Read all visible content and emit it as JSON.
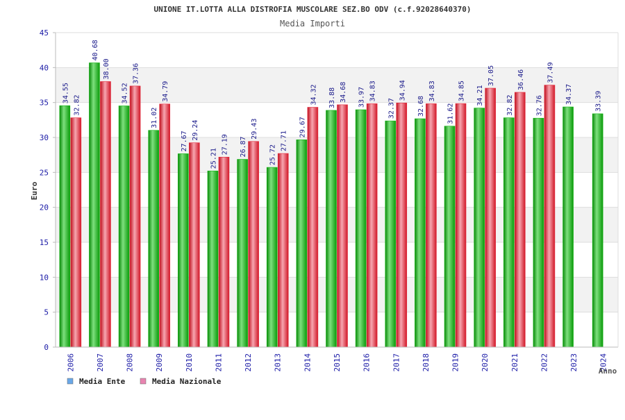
{
  "chart_data": {
    "type": "bar",
    "title": "UNIONE IT.LOTTA ALLA DISTROFIA MUSCOLARE SEZ.BO ODV (c.f.92028640370)",
    "subtitle": "Media Importi",
    "ylabel": "Euro",
    "xlabel": "Anno",
    "ylim": [
      0,
      45
    ],
    "yticks": [
      0,
      5,
      10,
      15,
      20,
      25,
      30,
      35,
      40,
      45
    ],
    "categories": [
      "2006",
      "2007",
      "2008",
      "2009",
      "2010",
      "2011",
      "2012",
      "2013",
      "2014",
      "2015",
      "2016",
      "2017",
      "2018",
      "2019",
      "2020",
      "2021",
      "2022",
      "2023",
      "2024"
    ],
    "series": [
      {
        "name": "Media Ente",
        "color": "#11b511",
        "legend_color": "#6aa8e8",
        "values": [
          34.55,
          40.68,
          34.52,
          31.02,
          27.67,
          25.21,
          26.87,
          25.72,
          29.67,
          33.88,
          33.97,
          32.37,
          32.68,
          31.62,
          34.21,
          32.82,
          32.76,
          34.37,
          33.39
        ],
        "labels": [
          "34.55",
          "40.68",
          "34.52",
          "31.02",
          "27.67",
          "25.21",
          "26.87",
          "25.72",
          "29.67",
          "33.88",
          "33.97",
          "32.37",
          "32.68",
          "31.62",
          "34.21",
          "32.82",
          "32.76",
          "34.37",
          "33.39"
        ]
      },
      {
        "name": "Media Nazionale",
        "color": "#e6283c",
        "legend_color": "#e884b0",
        "values": [
          32.82,
          38.0,
          37.36,
          34.79,
          29.24,
          27.19,
          29.43,
          27.71,
          34.32,
          34.68,
          34.83,
          34.94,
          34.83,
          34.85,
          37.05,
          36.46,
          37.49,
          null,
          null
        ],
        "labels": [
          "32.82",
          "38.00",
          "37.36",
          "34.79",
          "29.24",
          "27.19",
          "29.43",
          "27.71",
          "34.32",
          "34.68",
          "34.83",
          "34.94",
          "34.83",
          "34.85",
          "37.05",
          "36.46",
          "37.49",
          null,
          null
        ]
      }
    ],
    "legend_position": "bottom-left",
    "grid": true
  }
}
